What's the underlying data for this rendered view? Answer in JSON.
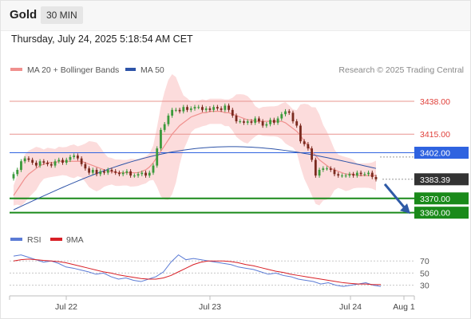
{
  "header": {
    "title": "Gold",
    "timeframe": "30 MIN"
  },
  "datetime": "Thursday, July 24, 2025 5:18:54 AM CET",
  "legend": {
    "items": [
      {
        "label": "MA 20 + Bollinger Bands",
        "color": "#f0908e"
      },
      {
        "label": "MA 50",
        "color": "#2e54a8"
      }
    ],
    "credit": "Research © 2025 Trading Central"
  },
  "rsi_legend": {
    "items": [
      {
        "label": "RSI",
        "color": "#5b7bd5"
      },
      {
        "label": "9MA",
        "color": "#d81f26"
      }
    ]
  },
  "colors": {
    "bull": "#3b9a3b",
    "bear": "#7b2a1e",
    "resistance": "#e8948f",
    "pivot": "#2f63e0",
    "support": "#1a8a1a",
    "last": "#333333",
    "band_fill": "#fcdcdc",
    "ma50": "#2e54a8",
    "ma20": "#f0908e",
    "arrow": "#2e5aa6"
  },
  "chart_data": [
    {
      "type": "candlestick",
      "title": "",
      "ylim": [
        3352,
        3452
      ],
      "x_ticks": [
        "Jul 22",
        "Jul 23",
        "Jul 24",
        "Aug 1"
      ],
      "price_levels": [
        {
          "value": 3438.0,
          "label": "3438.00",
          "kind": "resistance"
        },
        {
          "value": 3415.0,
          "label": "3415.00",
          "kind": "resistance"
        },
        {
          "value": 3402.0,
          "label": "3402.00",
          "kind": "pivot"
        },
        {
          "value": 3383.39,
          "label": "3383.39",
          "kind": "last"
        },
        {
          "value": 3370.0,
          "label": "3370.00",
          "kind": "support"
        },
        {
          "value": 3360.0,
          "label": "3360.00",
          "kind": "support"
        }
      ],
      "close": [
        3387,
        3390,
        3396,
        3398,
        3397,
        3395,
        3393,
        3396,
        3395,
        3394,
        3393,
        3396,
        3397,
        3395,
        3397,
        3399,
        3400,
        3398,
        3394,
        3391,
        3388,
        3390,
        3387,
        3389,
        3388,
        3390,
        3389,
        3388,
        3387,
        3388,
        3389,
        3386,
        3386,
        3387,
        3388,
        3386,
        3388,
        3393,
        3405,
        3418,
        3422,
        3428,
        3432,
        3432,
        3431,
        3434,
        3432,
        3433,
        3434,
        3434,
        3432,
        3433,
        3432,
        3434,
        3433,
        3432,
        3435,
        3432,
        3428,
        3424,
        3424,
        3423,
        3424,
        3423,
        3426,
        3424,
        3421,
        3422,
        3425,
        3423,
        3426,
        3429,
        3431,
        3430,
        3424,
        3421,
        3410,
        3408,
        3405,
        3397,
        3386,
        3390,
        3391,
        3391,
        3390,
        3387,
        3386,
        3386,
        3386,
        3387,
        3386,
        3388,
        3387,
        3387,
        3388,
        3385,
        3383.39
      ],
      "open": [
        3384,
        3387,
        3390,
        3396,
        3398,
        3397,
        3395,
        3393,
        3396,
        3395,
        3394,
        3393,
        3396,
        3397,
        3395,
        3397,
        3399,
        3400,
        3398,
        3394,
        3391,
        3388,
        3390,
        3387,
        3389,
        3388,
        3390,
        3389,
        3388,
        3387,
        3388,
        3389,
        3386,
        3386,
        3387,
        3388,
        3386,
        3388,
        3393,
        3405,
        3418,
        3422,
        3428,
        3432,
        3432,
        3431,
        3434,
        3432,
        3433,
        3434,
        3434,
        3432,
        3433,
        3432,
        3434,
        3433,
        3432,
        3435,
        3432,
        3428,
        3424,
        3424,
        3423,
        3424,
        3423,
        3426,
        3424,
        3421,
        3422,
        3425,
        3423,
        3426,
        3429,
        3431,
        3430,
        3424,
        3421,
        3410,
        3408,
        3405,
        3397,
        3386,
        3390,
        3391,
        3391,
        3390,
        3387,
        3386,
        3386,
        3386,
        3387,
        3386,
        3388,
        3387,
        3387,
        3388,
        3385
      ],
      "ma20": [
        3372,
        3376,
        3380,
        3384,
        3387,
        3389,
        3391,
        3393,
        3394,
        3395,
        3395,
        3395,
        3396,
        3396,
        3396,
        3396,
        3396,
        3396,
        3396,
        3395,
        3394,
        3393,
        3392,
        3391,
        3390,
        3389,
        3389,
        3388,
        3388,
        3388,
        3388,
        3388,
        3388,
        3388,
        3389,
        3390,
        3392,
        3395,
        3399,
        3403,
        3407,
        3411,
        3415,
        3418,
        3421,
        3423,
        3425,
        3427,
        3428,
        3429,
        3430,
        3430,
        3431,
        3431,
        3431,
        3431,
        3430,
        3430,
        3429,
        3428,
        3427,
        3426,
        3425,
        3425,
        3424,
        3424,
        3424,
        3424,
        3424,
        3424,
        3424,
        3424,
        3423,
        3421,
        3419,
        3417,
        3414,
        3410,
        3407,
        3403,
        3400,
        3397,
        3395,
        3393,
        3391,
        3390,
        3389,
        3388,
        3387,
        3387,
        3387,
        3386,
        3386,
        3386,
        3386,
        3386,
        3386
      ],
      "ma50_start": 3362,
      "ma50_end": 3399,
      "x_end_label": "Aug 1"
    },
    {
      "type": "line",
      "title": "RSI",
      "ylim": [
        15,
        90
      ],
      "y_ticks": [
        30,
        50,
        70
      ],
      "series": [
        {
          "name": "RSI",
          "values": [
            78,
            80,
            76,
            72,
            68,
            70,
            66,
            60,
            58,
            55,
            52,
            48,
            50,
            44,
            40,
            42,
            38,
            36,
            40,
            44,
            52,
            68,
            80,
            72,
            74,
            72,
            70,
            68,
            66,
            64,
            60,
            58,
            56,
            52,
            48,
            50,
            46,
            44,
            40,
            38,
            36,
            32,
            34,
            30,
            28,
            30,
            32,
            34,
            30,
            28
          ]
        },
        {
          "name": "9MA",
          "values": [
            70,
            72,
            73,
            72,
            71,
            70,
            69,
            67,
            64,
            61,
            58,
            55,
            52,
            50,
            47,
            45,
            43,
            41,
            40,
            40,
            42,
            46,
            52,
            58,
            64,
            68,
            70,
            70,
            70,
            69,
            67,
            64,
            62,
            59,
            56,
            53,
            51,
            48,
            46,
            44,
            42,
            40,
            38,
            36,
            34,
            33,
            32,
            32,
            31,
            31
          ]
        }
      ]
    }
  ]
}
